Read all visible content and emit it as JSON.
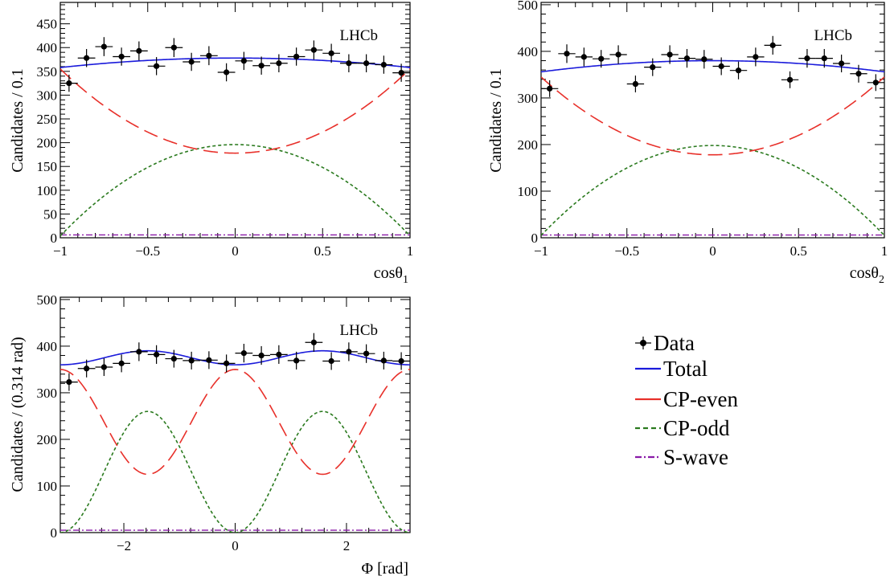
{
  "chart_data": [
    {
      "type": "scatter",
      "id": "cos1",
      "xlabel": "cosθ",
      "xlabel_sub": "1",
      "ylabel": "Candidates / 0.1",
      "watermark": "LHCb",
      "xlim": [
        -1,
        1
      ],
      "ylim": [
        0,
        495
      ],
      "xticks": [
        -1,
        -0.5,
        0,
        0.5,
        1
      ],
      "xtick_labels": [
        "−1",
        "−0.5",
        "0",
        "0.5",
        "1"
      ],
      "yticks": [
        0,
        50,
        100,
        150,
        200,
        250,
        300,
        350,
        400,
        450
      ],
      "xerr": 0.05,
      "data_x": [
        -0.95,
        -0.85,
        -0.75,
        -0.65,
        -0.55,
        -0.45,
        -0.35,
        -0.25,
        -0.15,
        -0.05,
        0.05,
        0.15,
        0.25,
        0.35,
        0.45,
        0.55,
        0.65,
        0.75,
        0.85,
        0.95
      ],
      "data_y": [
        325,
        378,
        402,
        381,
        393,
        361,
        400,
        370,
        383,
        348,
        372,
        362,
        367,
        381,
        395,
        388,
        367,
        367,
        364,
        347
      ],
      "data_err": [
        18,
        19,
        20,
        19,
        20,
        19,
        20,
        19,
        20,
        19,
        19,
        19,
        19,
        19,
        20,
        20,
        19,
        19,
        19,
        19
      ],
      "curves": {
        "total": {
          "kind": "quad",
          "a": 378,
          "b": -20
        },
        "cp_even": {
          "kind": "quad",
          "a": 178,
          "b": 177
        },
        "cp_odd": {
          "kind": "quad",
          "a": 196,
          "b": -192
        },
        "s_wave": {
          "kind": "const",
          "a": 6
        }
      }
    },
    {
      "type": "scatter",
      "id": "cos2",
      "xlabel": "cosθ",
      "xlabel_sub": "2",
      "ylabel": "Candidates / 0.1",
      "watermark": "LHCb",
      "xlim": [
        -1,
        1
      ],
      "ylim": [
        0,
        505
      ],
      "xticks": [
        -1,
        -0.5,
        0,
        0.5,
        1
      ],
      "xtick_labels": [
        "−1",
        "−0.5",
        "0",
        "0.5",
        "1"
      ],
      "yticks": [
        0,
        100,
        200,
        300,
        400,
        500
      ],
      "xerr": 0.05,
      "data_x": [
        -0.95,
        -0.85,
        -0.75,
        -0.65,
        -0.55,
        -0.45,
        -0.35,
        -0.25,
        -0.15,
        -0.05,
        0.05,
        0.15,
        0.25,
        0.35,
        0.45,
        0.55,
        0.65,
        0.75,
        0.85,
        0.95
      ],
      "data_y": [
        320,
        395,
        388,
        384,
        393,
        330,
        366,
        393,
        385,
        383,
        368,
        359,
        388,
        413,
        339,
        385,
        385,
        374,
        352,
        333
      ],
      "data_err": [
        18,
        20,
        20,
        19,
        20,
        18,
        19,
        20,
        20,
        20,
        19,
        19,
        20,
        20,
        18,
        20,
        20,
        19,
        19,
        18
      ],
      "curves": {
        "total": {
          "kind": "quad",
          "a": 380,
          "b": -24
        },
        "cp_even": {
          "kind": "quad",
          "a": 178,
          "b": 167
        },
        "cp_odd": {
          "kind": "quad",
          "a": 198,
          "b": -193
        },
        "s_wave": {
          "kind": "const",
          "a": 6
        }
      }
    },
    {
      "type": "scatter",
      "id": "phi",
      "xlabel": "Φ [rad]",
      "xlabel_sub": "",
      "ylabel": "Candidates / (0.314 rad)",
      "watermark": "LHCb",
      "xlim": [
        -3.1416,
        3.1416
      ],
      "ylim": [
        0,
        505
      ],
      "xticks": [
        -2,
        0,
        2
      ],
      "xtick_labels": [
        "−2",
        "0",
        "2"
      ],
      "yticks": [
        0,
        100,
        200,
        300,
        400,
        500
      ],
      "xerr": 0.157,
      "data_x": [
        -2.984,
        -2.67,
        -2.356,
        -2.042,
        -1.728,
        -1.414,
        -1.1,
        -0.785,
        -0.471,
        -0.157,
        0.157,
        0.471,
        0.785,
        1.1,
        1.414,
        1.728,
        2.042,
        2.356,
        2.67,
        2.984
      ],
      "data_y": [
        323,
        352,
        355,
        363,
        388,
        382,
        373,
        369,
        370,
        363,
        385,
        380,
        382,
        369,
        408,
        368,
        388,
        384,
        369,
        368
      ],
      "data_err": [
        19,
        19,
        19,
        19,
        20,
        20,
        19,
        19,
        19,
        19,
        20,
        20,
        20,
        19,
        20,
        19,
        20,
        20,
        19,
        19
      ],
      "curves": {
        "total": {
          "kind": "cos2",
          "a": 375,
          "b": -15
        },
        "cp_even": {
          "kind": "cos2",
          "a": 237.5,
          "b": 112.5
        },
        "cp_odd": {
          "kind": "cos2",
          "a": 130,
          "b": -130
        },
        "s_wave": {
          "kind": "const",
          "a": 5
        }
      }
    }
  ],
  "legend": {
    "placement": "bottom-right",
    "entries": [
      {
        "key": "data",
        "label": "Data",
        "color": "#000000"
      },
      {
        "key": "total",
        "label": "Total",
        "color": "#1a1adb"
      },
      {
        "key": "cp_even",
        "label": "CP-even",
        "color": "#e8302a"
      },
      {
        "key": "cp_odd",
        "label": "CP-odd",
        "color": "#2a7a1e"
      },
      {
        "key": "s_wave",
        "label": "S-wave",
        "color": "#8a1aa8"
      }
    ]
  }
}
